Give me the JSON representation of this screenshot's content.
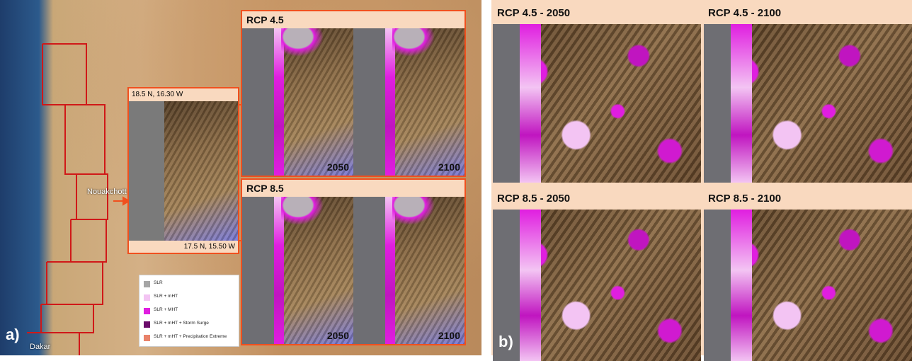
{
  "panel_a": {
    "label": "a)",
    "city_labels": [
      "Nouakchott",
      "Dakar"
    ],
    "inset": {
      "top_coord": "18.5 N, 16.30 W",
      "bottom_coord": "17.5 N, 15.50 W"
    },
    "scenarios": [
      {
        "title": "RCP 4.5",
        "years": [
          "2050",
          "2100"
        ]
      },
      {
        "title": "RCP 8.5",
        "years": [
          "2050",
          "2100"
        ]
      }
    ],
    "legend": [
      {
        "label": "SLR",
        "color": "#a6a6a6"
      },
      {
        "label": "SLR + mHT",
        "color": "#f3c4f3"
      },
      {
        "label": "SLR + MHT",
        "color": "#e01ee0"
      },
      {
        "label": "SLR + mHT + Storm Surge",
        "color": "#6b0b6b"
      },
      {
        "label": "SLR + mHT + Precipitation Extreme",
        "color": "#e9826a"
      }
    ]
  },
  "panel_b": {
    "label": "b)",
    "maps": [
      "RCP 4.5 - 2050",
      "RCP 4.5 - 2100",
      "RCP 8.5 - 2050",
      "RCP 8.5 - 2100"
    ]
  }
}
